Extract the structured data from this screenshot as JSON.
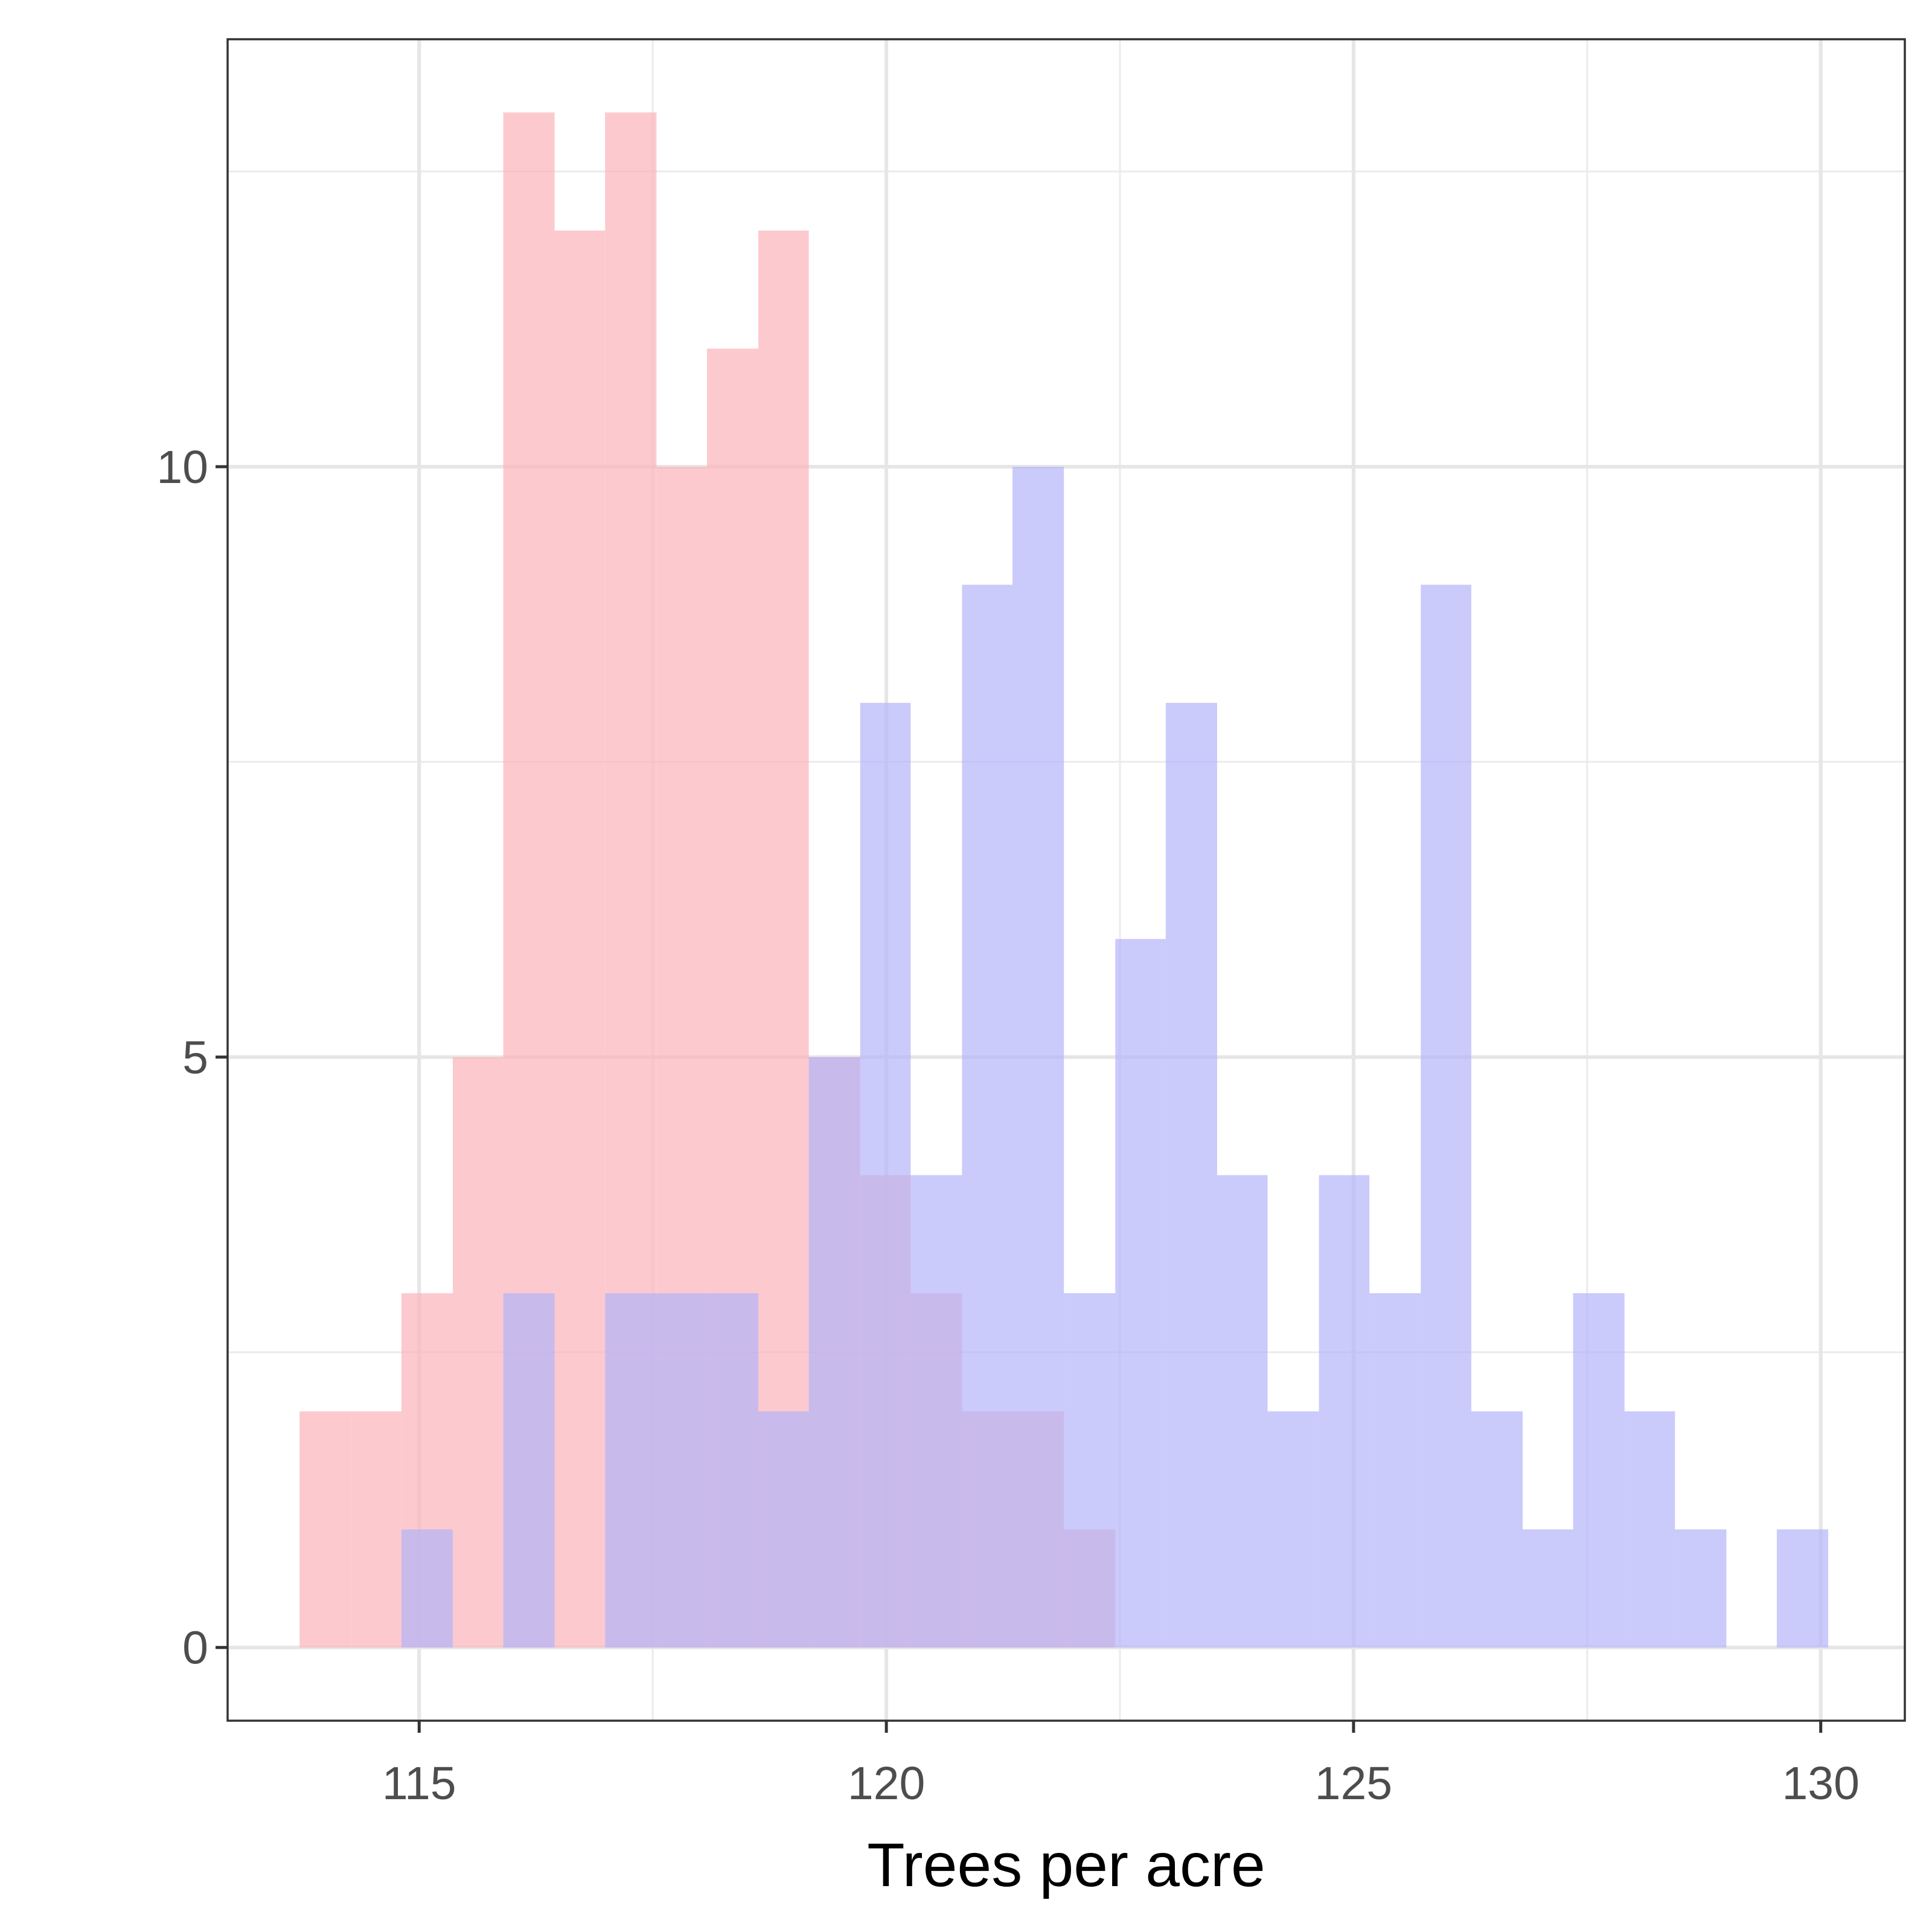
{
  "chart_data": {
    "type": "bar",
    "subtype": "histogram",
    "title": "",
    "xlabel": "Trees per acre",
    "ylabel": "",
    "xlim": [
      112.95,
      130.9
    ],
    "ylim": [
      -0.62,
      13.62
    ],
    "x_ticks": [
      115,
      120,
      125,
      130
    ],
    "y_ticks": [
      0,
      5,
      10
    ],
    "grid": true,
    "legend": "none",
    "bin_width": 0.545,
    "series": [
      {
        "color": "#fbb4b9",
        "opacity": 0.7,
        "bins": [
          {
            "x0": 113.72,
            "x1": 114.27,
            "count": 2
          },
          {
            "x0": 114.27,
            "x1": 114.81,
            "count": 2
          },
          {
            "x0": 114.81,
            "x1": 115.36,
            "count": 3
          },
          {
            "x0": 115.36,
            "x1": 115.9,
            "count": 5
          },
          {
            "x0": 115.9,
            "x1": 116.45,
            "count": 13
          },
          {
            "x0": 116.45,
            "x1": 116.99,
            "count": 12
          },
          {
            "x0": 116.99,
            "x1": 117.54,
            "count": 13
          },
          {
            "x0": 117.54,
            "x1": 118.08,
            "count": 10
          },
          {
            "x0": 118.08,
            "x1": 118.63,
            "count": 11
          },
          {
            "x0": 118.63,
            "x1": 119.17,
            "count": 12
          },
          {
            "x0": 119.17,
            "x1": 119.72,
            "count": 5
          },
          {
            "x0": 119.72,
            "x1": 120.26,
            "count": 4
          },
          {
            "x0": 120.26,
            "x1": 120.81,
            "count": 3
          },
          {
            "x0": 120.81,
            "x1": 121.35,
            "count": 2
          },
          {
            "x0": 121.35,
            "x1": 121.9,
            "count": 2
          },
          {
            "x0": 121.9,
            "x1": 122.45,
            "count": 1
          }
        ]
      },
      {
        "color": "#b3b3fa",
        "opacity": 0.7,
        "bins": [
          {
            "x0": 114.81,
            "x1": 115.36,
            "count": 1
          },
          {
            "x0": 115.9,
            "x1": 116.45,
            "count": 3
          },
          {
            "x0": 116.99,
            "x1": 117.54,
            "count": 3
          },
          {
            "x0": 117.54,
            "x1": 118.08,
            "count": 3
          },
          {
            "x0": 118.08,
            "x1": 118.63,
            "count": 3
          },
          {
            "x0": 118.63,
            "x1": 119.17,
            "count": 2
          },
          {
            "x0": 119.17,
            "x1": 119.72,
            "count": 5
          },
          {
            "x0": 119.72,
            "x1": 120.26,
            "count": 8
          },
          {
            "x0": 120.26,
            "x1": 120.81,
            "count": 4
          },
          {
            "x0": 120.81,
            "x1": 121.35,
            "count": 9
          },
          {
            "x0": 121.35,
            "x1": 121.9,
            "count": 10
          },
          {
            "x0": 121.9,
            "x1": 122.45,
            "count": 3
          },
          {
            "x0": 122.45,
            "x1": 122.99,
            "count": 6
          },
          {
            "x0": 122.99,
            "x1": 123.54,
            "count": 8
          },
          {
            "x0": 123.54,
            "x1": 124.08,
            "count": 4
          },
          {
            "x0": 124.08,
            "x1": 124.63,
            "count": 2
          },
          {
            "x0": 124.63,
            "x1": 125.17,
            "count": 4
          },
          {
            "x0": 125.17,
            "x1": 125.72,
            "count": 3
          },
          {
            "x0": 125.72,
            "x1": 126.26,
            "count": 9
          },
          {
            "x0": 126.26,
            "x1": 126.81,
            "count": 2
          },
          {
            "x0": 126.81,
            "x1": 127.35,
            "count": 1
          },
          {
            "x0": 127.35,
            "x1": 127.9,
            "count": 3
          },
          {
            "x0": 127.9,
            "x1": 128.44,
            "count": 2
          },
          {
            "x0": 128.44,
            "x1": 128.99,
            "count": 1
          },
          {
            "x0": 129.53,
            "x1": 130.08,
            "count": 1
          }
        ]
      }
    ]
  }
}
